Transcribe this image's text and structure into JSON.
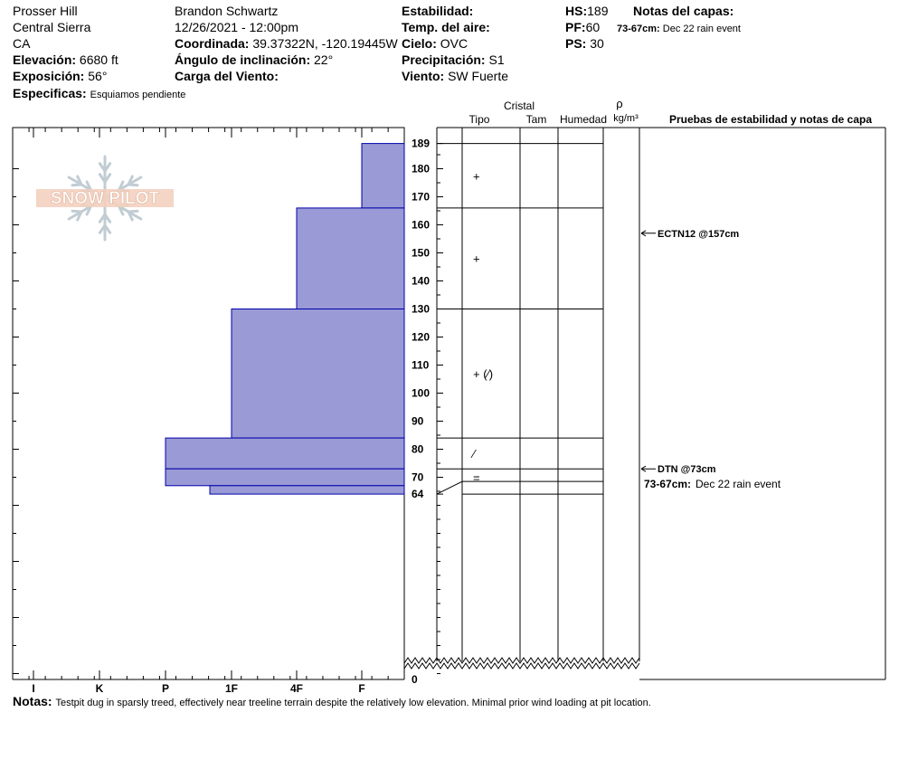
{
  "header": {
    "location": "Prosser Hill",
    "region": "Central Sierra",
    "state": "CA",
    "elevation_label": "Elevación:",
    "elevation": "6680 ft",
    "aspect_label": "Exposición:",
    "aspect": "56°",
    "specifics_label": "Especificas:",
    "specifics": "Esquiamos pendiente",
    "observer": "Brandon Schwartz",
    "datetime": "12/26/2021 - 12:00pm",
    "coord_label": "Coordinada:",
    "coord": "39.37322N, -120.19445W",
    "slope_label": "Ángulo de inclinación:",
    "slope": "22°",
    "wind_load_label": "Carga del Viento:",
    "wind_load": "",
    "stability_label": "Estabilidad:",
    "stability": "",
    "air_temp_label": "Temp. del aire:",
    "air_temp": "",
    "sky_label": "Cielo:",
    "sky": "OVC",
    "precip_label": "Precipitación:",
    "precip": "S1",
    "wind_label": "Viento:",
    "wind": "SW Fuerte",
    "hs_label": "HS:",
    "hs": "189",
    "pf_label": "PF:",
    "pf": "60",
    "ps_label": "PS:",
    "ps": "30",
    "layer_notes_label": "Notas del capas:",
    "layer_note_range": "73-67cm:",
    "layer_note_text": "Dec 22 rain event"
  },
  "columns": {
    "crystal": "Cristal",
    "type": "Tipo",
    "size": "Tam",
    "moisture": "Humedad",
    "rho": "ρ",
    "density_unit": "kg/m³",
    "tests": "Pruebas de estabilidad y notas de capa"
  },
  "logo_text": "SNOW PILOT",
  "notes_label": "Notas:",
  "notes": "Testpit dug in sparsly treed, effectively near treeline terrain despite the relatively low elevation. Minimal prior wind loading at pit location.",
  "chart_data": {
    "type": "bar",
    "orientation": "horizontal",
    "description_axis": "hand hardness profile vs depth (cm)",
    "x_tick_labels": [
      "I",
      "K",
      "P",
      "1F",
      "4F",
      "F"
    ],
    "y_range": [
      0,
      189
    ],
    "y_ticks": [
      189,
      180,
      170,
      160,
      150,
      140,
      130,
      120,
      110,
      100,
      90,
      80,
      70,
      64,
      0
    ],
    "colors": {
      "fill": "#9a9ad6",
      "stroke": "#0000aa"
    },
    "layers": [
      {
        "top": 189,
        "bottom": 166,
        "hardness": "F",
        "grain": "+"
      },
      {
        "top": 166,
        "bottom": 130,
        "hardness": "4F",
        "grain": "+"
      },
      {
        "top": 130,
        "bottom": 84,
        "hardness": "1F",
        "grain": "+ (⁄)"
      },
      {
        "top": 84,
        "bottom": 73,
        "hardness": "P",
        "grain": "⁄"
      },
      {
        "top": 73,
        "bottom": 67,
        "hardness": "P",
        "grain": "="
      },
      {
        "top": 67,
        "bottom": 64,
        "hardness": "P-1F",
        "grain": ""
      }
    ],
    "tests": [
      {
        "depth": 157,
        "text": "ECTN12 @157cm"
      },
      {
        "depth": 73,
        "text": "DTN @73cm"
      }
    ],
    "layer_notes": [
      {
        "depth": 67,
        "range": "73-67cm:",
        "text": "Dec 22 rain event"
      }
    ]
  }
}
